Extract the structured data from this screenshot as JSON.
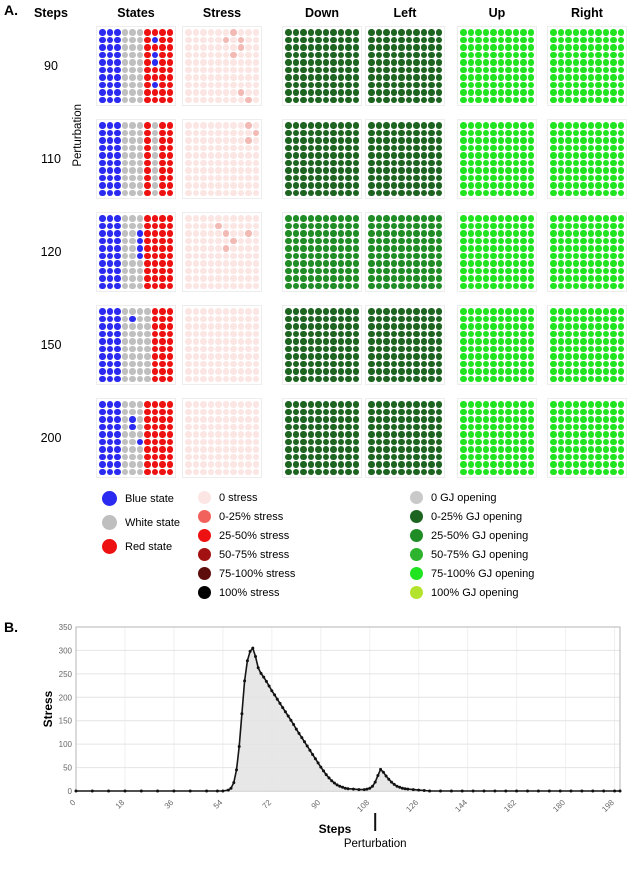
{
  "panelA": {
    "label": "A.",
    "headers": {
      "steps": "Steps",
      "states": "States",
      "stress": "Stress",
      "down": "Down",
      "left": "Left",
      "up": "Up",
      "right": "Right"
    },
    "perturbation_label": "Perturbation",
    "grid_size": {
      "rows": 10,
      "cols": 10
    },
    "palette": {
      "B": "#2a2af0",
      "W": "#bfbfbf",
      "R": "#ee1111",
      "P": "#fbe6e4",
      "p": "#f3b9b4",
      "D": "#1c6420",
      "G": "#1f8c26",
      "L": "#21e421"
    },
    "rows": [
      {
        "step": "90",
        "states": {
          "rows": [
            "BBBWWWRRRR",
            "BBBWWWRBRR",
            "BBBWWWRRRR",
            "BBBWWWRBRR",
            "BBBWWWRBRR",
            "BBBWWWRRRR",
            "BBBWWWRRRR",
            "BBBWWWRBRR",
            "BBBWWWRRRR",
            "BBBWWWRRRR"
          ]
        },
        "stress": {
          "rows": [
            "PPPPPPpPPP",
            "PPPPPpPpPP",
            "PPPPPPPpPP",
            "PPPPPPpPPP",
            "PPPPPPPPPP",
            "PPPPPPPPPP",
            "PPPPPPPPPP",
            "PPPPPPPPPP",
            "PPPPPPPpPP",
            "PPPPPPPPpP"
          ]
        },
        "down": {
          "fill": "D"
        },
        "left": {
          "fill": "D"
        },
        "up": {
          "fill": "L"
        },
        "right": {
          "fill": "L"
        }
      },
      {
        "step": "110",
        "states": {
          "rows": [
            "BBBWWWRWRR",
            "BBBWWWRWRR",
            "BBBWWWRWRR",
            "BBBWWWRWRR",
            "BBBWWWRWRR",
            "BBBWWWRWRR",
            "BBBWWWRWRR",
            "BBBWWWRWRR",
            "BBBWWWRWRR",
            "BBBWWWRWRR"
          ]
        },
        "stress": {
          "rows": [
            "PPPPPPPPpP",
            "PPPPPPPPPp",
            "PPPPPPPPpP",
            "PPPPPPPPPP",
            "PPPPPPPPPP",
            "PPPPPPPPPP",
            "PPPPPPPPPP",
            "PPPPPPPPPP",
            "PPPPPPPPPP",
            "PPPPPPPPPP"
          ]
        },
        "down": {
          "fill": "D"
        },
        "left": {
          "fill": "D"
        },
        "up": {
          "fill": "L"
        },
        "right": {
          "fill": "L"
        }
      },
      {
        "step": "120",
        "states": {
          "rows": [
            "BBBWWWRRRR",
            "BBBWWWRRRR",
            "BBBWWBRRRR",
            "BBBWWBRRRR",
            "BBBWWBRRRR",
            "BBBWWBRRRR",
            "BBBWWWRRRR",
            "BBBWWWRRRR",
            "BBBWWWRRRR",
            "BBBWWWRRRR"
          ]
        },
        "stress": {
          "rows": [
            "PPPPPPPPPP",
            "PPPPpPPPPP",
            "PPPPPpPPpP",
            "PPPPPPpPPP",
            "PPPPPpPPPP",
            "PPPPPPPPPP",
            "PPPPPPPPPP",
            "PPPPPPPPPP",
            "PPPPPPPPPP",
            "PPPPPPPPPP"
          ]
        },
        "down": {
          "fill": "G"
        },
        "left": {
          "fill": "G"
        },
        "up": {
          "fill": "L"
        },
        "right": {
          "fill": "L"
        }
      },
      {
        "step": "150",
        "states": {
          "rows": [
            "BBBWWWWRRR",
            "BBBWBWWRRR",
            "BBBWWWWRRR",
            "BBBWWWWRRR",
            "BBBWWWWRRR",
            "BBBWWWWRRR",
            "BBBWWWWRRR",
            "BBBWWWWRRR",
            "BBBWWWWRRR",
            "BBBWWWWRRR"
          ]
        },
        "stress": {
          "fill": "P"
        },
        "down": {
          "fill": "D"
        },
        "left": {
          "fill": "D"
        },
        "up": {
          "fill": "L"
        },
        "right": {
          "fill": "L"
        }
      },
      {
        "step": "200",
        "states": {
          "rows": [
            "BBBWWWRRRR",
            "BBBWWWRRRR",
            "BBBWBWRRRR",
            "BBBWBWRRRR",
            "BBBWWWRRRR",
            "BBBWWBRRRR",
            "BBBWWWRRRR",
            "BBBWWWRRRR",
            "BBBWWWRRRR",
            "BBBWWWRRRR"
          ]
        },
        "stress": {
          "fill": "P"
        },
        "down": {
          "fill": "D"
        },
        "left": {
          "fill": "D"
        },
        "up": {
          "fill": "L"
        },
        "right": {
          "fill": "L"
        }
      }
    ],
    "legends": {
      "states": [
        {
          "label": "Blue state",
          "color": "#2a2af0"
        },
        {
          "label": "White state",
          "color": "#bfbfbf"
        },
        {
          "label": "Red state",
          "color": "#ee1111"
        }
      ],
      "stress": [
        {
          "label": "0 stress",
          "color": "#fbe6e4"
        },
        {
          "label": "0-25% stress",
          "color": "#f2625d"
        },
        {
          "label": "25-50% stress",
          "color": "#ee1111"
        },
        {
          "label": "50-75% stress",
          "color": "#a31212"
        },
        {
          "label": "75-100% stress",
          "color": "#5e0d0d"
        },
        {
          "label": "100% stress",
          "color": "#000000"
        }
      ],
      "gj": [
        {
          "label": "0  GJ opening",
          "color": "#c9c9c9"
        },
        {
          "label": "0-25% GJ opening",
          "color": "#1c6420"
        },
        {
          "label": "25-50% GJ opening",
          "color": "#1f8c26"
        },
        {
          "label": "50-75% GJ opening",
          "color": "#2db32d"
        },
        {
          "label": "75-100% GJ opening",
          "color": "#21e421"
        },
        {
          "label": "100% GJ opening",
          "color": "#b4e32d"
        }
      ]
    }
  },
  "panelB": {
    "label": "B."
  },
  "chart_data": {
    "type": "line",
    "title": "",
    "xlabel": "Steps",
    "ylabel": "Stress",
    "xlim": [
      0,
      200
    ],
    "ylim": [
      0,
      350
    ],
    "x_ticks": [
      0,
      18,
      36,
      54,
      72,
      90,
      108,
      126,
      144,
      162,
      180,
      198
    ],
    "y_ticks": [
      0,
      50,
      100,
      150,
      200,
      250,
      300,
      350
    ],
    "grid": true,
    "area_fill": true,
    "line_color": "#161616",
    "fill_color": "#e3e3e3",
    "annotation": {
      "label": "Perturbation",
      "x": 110
    },
    "series": [
      {
        "name": "Stress",
        "points": [
          [
            0,
            0
          ],
          [
            6,
            0
          ],
          [
            12,
            0
          ],
          [
            18,
            0
          ],
          [
            24,
            0
          ],
          [
            30,
            0
          ],
          [
            36,
            0
          ],
          [
            42,
            0
          ],
          [
            48,
            0
          ],
          [
            52,
            0
          ],
          [
            54,
            0
          ],
          [
            56,
            2
          ],
          [
            57,
            6
          ],
          [
            58,
            18
          ],
          [
            59,
            45
          ],
          [
            60,
            95
          ],
          [
            61,
            165
          ],
          [
            62,
            235
          ],
          [
            63,
            278
          ],
          [
            64,
            298
          ],
          [
            65,
            305
          ],
          [
            66,
            287
          ],
          [
            67,
            263
          ],
          [
            68,
            251
          ],
          [
            69,
            243
          ],
          [
            70,
            234
          ],
          [
            71,
            224
          ],
          [
            72,
            214
          ],
          [
            73,
            205
          ],
          [
            74,
            196
          ],
          [
            75,
            187
          ],
          [
            76,
            178
          ],
          [
            77,
            169
          ],
          [
            78,
            160
          ],
          [
            79,
            151
          ],
          [
            80,
            142
          ],
          [
            81,
            132
          ],
          [
            82,
            123
          ],
          [
            83,
            114
          ],
          [
            84,
            105
          ],
          [
            85,
            96
          ],
          [
            86,
            87
          ],
          [
            87,
            78
          ],
          [
            88,
            69
          ],
          [
            89,
            60
          ],
          [
            90,
            51
          ],
          [
            91,
            43
          ],
          [
            92,
            35
          ],
          [
            93,
            28
          ],
          [
            94,
            22
          ],
          [
            95,
            17
          ],
          [
            96,
            13
          ],
          [
            97,
            10
          ],
          [
            98,
            8
          ],
          [
            99,
            6
          ],
          [
            100,
            5
          ],
          [
            102,
            4
          ],
          [
            104,
            3
          ],
          [
            106,
            3
          ],
          [
            107,
            4
          ],
          [
            108,
            6
          ],
          [
            109,
            10
          ],
          [
            110,
            19
          ],
          [
            111,
            33
          ],
          [
            112,
            46
          ],
          [
            113,
            40
          ],
          [
            114,
            32
          ],
          [
            115,
            25
          ],
          [
            116,
            19
          ],
          [
            117,
            14
          ],
          [
            118,
            10
          ],
          [
            119,
            8
          ],
          [
            120,
            6
          ],
          [
            121,
            5
          ],
          [
            122,
            4
          ],
          [
            124,
            3
          ],
          [
            126,
            2
          ],
          [
            128,
            1
          ],
          [
            130,
            0
          ],
          [
            134,
            0
          ],
          [
            138,
            0
          ],
          [
            142,
            0
          ],
          [
            146,
            0
          ],
          [
            150,
            0
          ],
          [
            154,
            0
          ],
          [
            158,
            0
          ],
          [
            162,
            0
          ],
          [
            166,
            0
          ],
          [
            170,
            0
          ],
          [
            174,
            0
          ],
          [
            178,
            0
          ],
          [
            182,
            0
          ],
          [
            186,
            0
          ],
          [
            190,
            0
          ],
          [
            194,
            0
          ],
          [
            198,
            0
          ],
          [
            200,
            0
          ]
        ]
      }
    ]
  }
}
